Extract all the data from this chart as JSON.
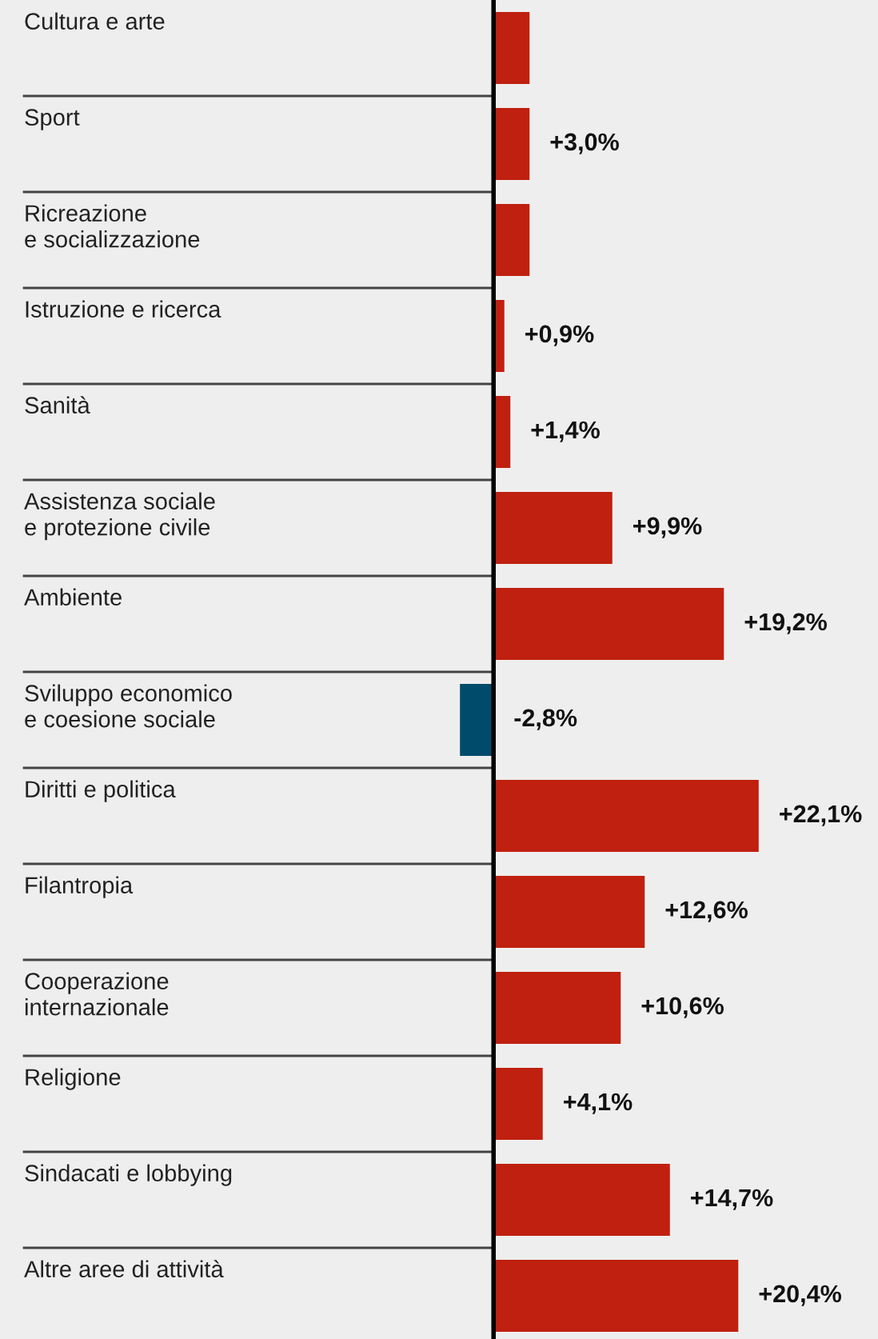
{
  "chart_data": {
    "type": "bar",
    "orientation": "horizontal",
    "categories": [
      "Cultura e arte",
      "Sport",
      "Ricreazione\ne socializzazione",
      "Istruzione e ricerca",
      "Sanità",
      "Assistenza sociale\ne protezione civile",
      "Ambiente",
      "Sviluppo economico\ne coesione sociale",
      "Diritti e politica",
      "Filantropia",
      "Cooperazione\ninternazionale",
      "Religione",
      "Sindacati e lobbying",
      "Altre aree di attività"
    ],
    "values": [
      3.0,
      3.0,
      3.0,
      0.9,
      1.4,
      9.9,
      19.2,
      -2.8,
      22.1,
      12.6,
      10.6,
      4.1,
      14.7,
      20.4
    ],
    "value_labels": [
      null,
      "+3,0%",
      null,
      "+0,9%",
      "+1,4%",
      "+9,9%",
      "+19,2%",
      "-2,8%",
      "+22,1%",
      "+12,6%",
      "+10,6%",
      "+4,1%",
      "+14,7%",
      "+20,4%"
    ],
    "colors": [
      "#c0200f",
      "#c0200f",
      "#c0200f",
      "#c0200f",
      "#c0200f",
      "#c0200f",
      "#c0200f",
      "#004a6b",
      "#c0200f",
      "#c0200f",
      "#c0200f",
      "#c0200f",
      "#c0200f",
      "#c0200f"
    ]
  }
}
